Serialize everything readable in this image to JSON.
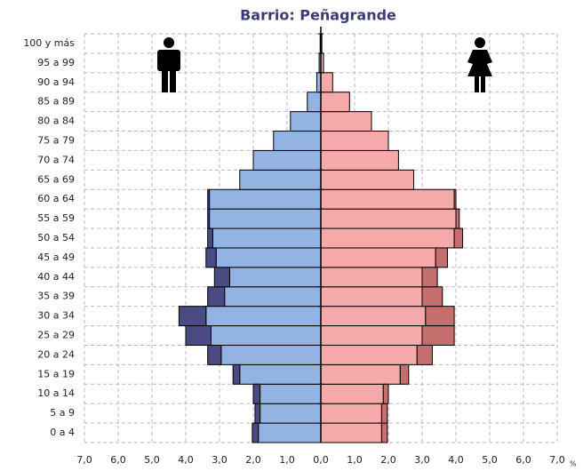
{
  "chart_data": {
    "type": "pyramid",
    "title": "Barrio: Peñagrande",
    "x_label": "%",
    "categories": [
      "0 a 4",
      "5 a 9",
      "10 a 14",
      "15 a 19",
      "20 a 24",
      "25 a 29",
      "30 a 34",
      "35 a 39",
      "40 a 44",
      "45 a 49",
      "50 a 54",
      "55 a 59",
      "60 a 64",
      "65 a 69",
      "70 a 74",
      "75 a 79",
      "80 a 84",
      "85 a 89",
      "90 a 94",
      "95 a 99",
      "100 y más"
    ],
    "series": [
      {
        "side": "left",
        "color": "#93b4e2",
        "values": [
          1.85,
          1.8,
          1.8,
          2.4,
          2.95,
          3.25,
          3.4,
          2.85,
          2.7,
          3.1,
          3.2,
          3.3,
          3.3,
          2.4,
          2.0,
          1.4,
          0.9,
          0.4,
          0.12,
          0.05,
          0.02
        ]
      },
      {
        "side": "left",
        "color": "#4b4b83",
        "values": [
          0.18,
          0.15,
          0.2,
          0.2,
          0.4,
          0.75,
          0.8,
          0.5,
          0.45,
          0.3,
          0.15,
          0.05,
          0.05,
          0,
          0,
          0,
          0,
          0,
          0,
          0,
          0
        ]
      },
      {
        "side": "right",
        "color": "#f6a9a9",
        "values": [
          1.8,
          1.8,
          1.85,
          2.35,
          2.85,
          3.0,
          3.1,
          3.0,
          3.0,
          3.4,
          3.95,
          4.0,
          3.95,
          2.75,
          2.3,
          2.0,
          1.5,
          0.85,
          0.35,
          0.08,
          0.03
        ]
      },
      {
        "side": "right",
        "color": "#c46e6e",
        "values": [
          0.17,
          0.17,
          0.15,
          0.25,
          0.45,
          0.95,
          0.85,
          0.6,
          0.45,
          0.35,
          0.25,
          0.1,
          0.05,
          0,
          0,
          0,
          0,
          0,
          0,
          0,
          0
        ]
      }
    ],
    "xlim": [
      -7,
      7
    ],
    "xticks": [
      {
        "value": -7,
        "label": "7,0"
      },
      {
        "value": -6,
        "label": "6,0"
      },
      {
        "value": -5,
        "label": "5,0"
      },
      {
        "value": -4,
        "label": "4,0"
      },
      {
        "value": -3,
        "label": "3,0"
      },
      {
        "value": -2,
        "label": "2,0"
      },
      {
        "value": -1,
        "label": "1,0"
      },
      {
        "value": 0,
        "label": "0,0"
      },
      {
        "value": 1,
        "label": "1,0"
      },
      {
        "value": 2,
        "label": "2,0"
      },
      {
        "value": 3,
        "label": "3,0"
      },
      {
        "value": 4,
        "label": "4,0"
      },
      {
        "value": 5,
        "label": "5,0"
      },
      {
        "value": 6,
        "label": "6,0"
      },
      {
        "value": 7,
        "label": "7,0"
      }
    ],
    "grid": true
  }
}
